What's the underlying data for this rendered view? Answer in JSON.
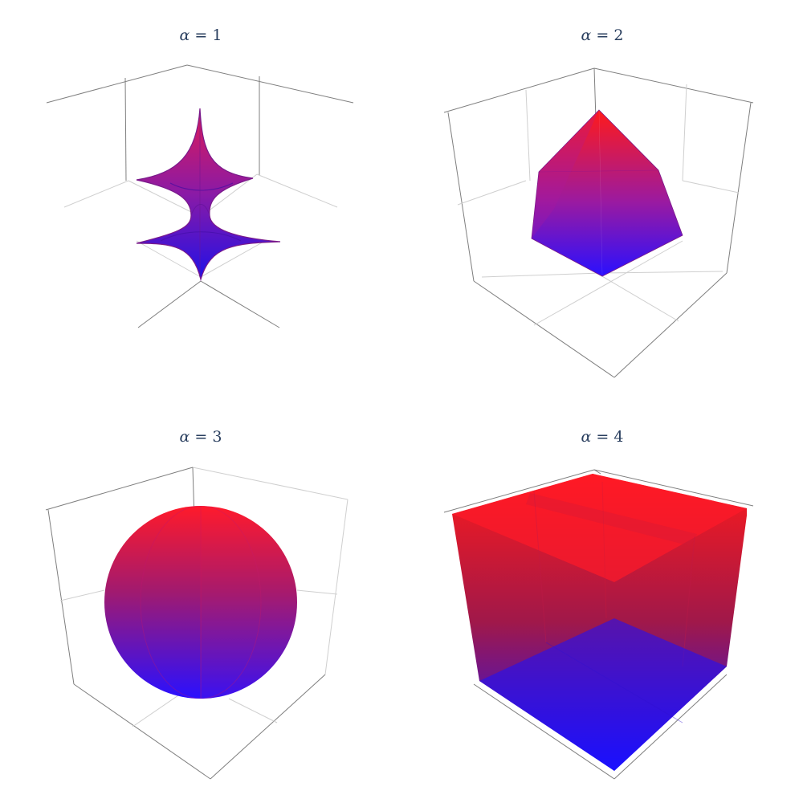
{
  "colors": {
    "low": "#1a10ff",
    "high": "#ff1a1a",
    "title": "#2a3f5f",
    "axis": "#7f7f7f",
    "grid": "#cfcfcf"
  },
  "chart_data": [
    {
      "type": "surface3d",
      "title_symbol": "α",
      "title_rest": " = 1",
      "alpha": 1,
      "shape": "astroid",
      "colorscale": [
        "blue",
        "red"
      ],
      "axes_visible": true,
      "tick_labels": false
    },
    {
      "type": "surface3d",
      "title_symbol": "α",
      "title_rest": " = 2",
      "alpha": 2,
      "shape": "octahedron",
      "colorscale": [
        "blue",
        "red"
      ],
      "axes_visible": true,
      "tick_labels": false
    },
    {
      "type": "surface3d",
      "title_symbol": "α",
      "title_rest": " = 3",
      "alpha": 3,
      "shape": "sphere",
      "colorscale": [
        "blue",
        "red"
      ],
      "axes_visible": true,
      "tick_labels": false
    },
    {
      "type": "surface3d",
      "title_symbol": "α",
      "title_rest": " = 4",
      "alpha": 4,
      "shape": "cube",
      "colorscale": [
        "blue",
        "red"
      ],
      "axes_visible": true,
      "tick_labels": false
    }
  ]
}
